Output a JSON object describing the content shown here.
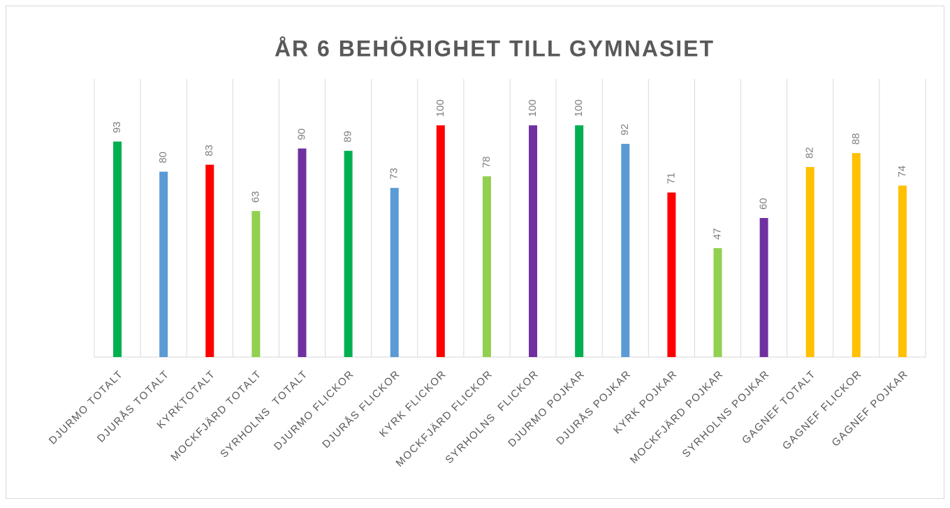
{
  "chart_data": {
    "type": "bar",
    "title": "ÅR 6 BEHÖRIGHET TILL GYMNASIET",
    "categories": [
      "DJURMO TOTALT",
      "DJURÅS TOTALT",
      "KYRKTOTALT",
      "MOCKFJÄRD TOTALT",
      "SYRHOLNS  TOTALT",
      "DJURMO FLICKOR",
      "DJURÅS FLICKOR",
      "KYRK FLICKOR",
      "MOCKFJÄRD FLICKOR",
      "SYRHOLNS  FLICKOR",
      "DJURMO POJKAR",
      "DJURÅS POJKAR",
      "KYRK POJKAR",
      "MOCKFJÄRD POJKAR",
      "SYRHOLNS POJKAR",
      "GAGNEF TOTALT",
      "GAGNEF FLICKOR",
      "GAGNEF POJKAR"
    ],
    "values": [
      93,
      80,
      83,
      63,
      90,
      89,
      73,
      100,
      78,
      100,
      100,
      92,
      71,
      47,
      60,
      82,
      88,
      74
    ],
    "colors": [
      "#00b050",
      "#5b9bd5",
      "#ff0000",
      "#92d050",
      "#7030a0",
      "#00b050",
      "#5b9bd5",
      "#ff0000",
      "#92d050",
      "#7030a0",
      "#00b050",
      "#5b9bd5",
      "#ff0000",
      "#92d050",
      "#7030a0",
      "#ffc000",
      "#ffc000",
      "#ffc000"
    ],
    "ylim": [
      0,
      120
    ],
    "grid": true
  }
}
